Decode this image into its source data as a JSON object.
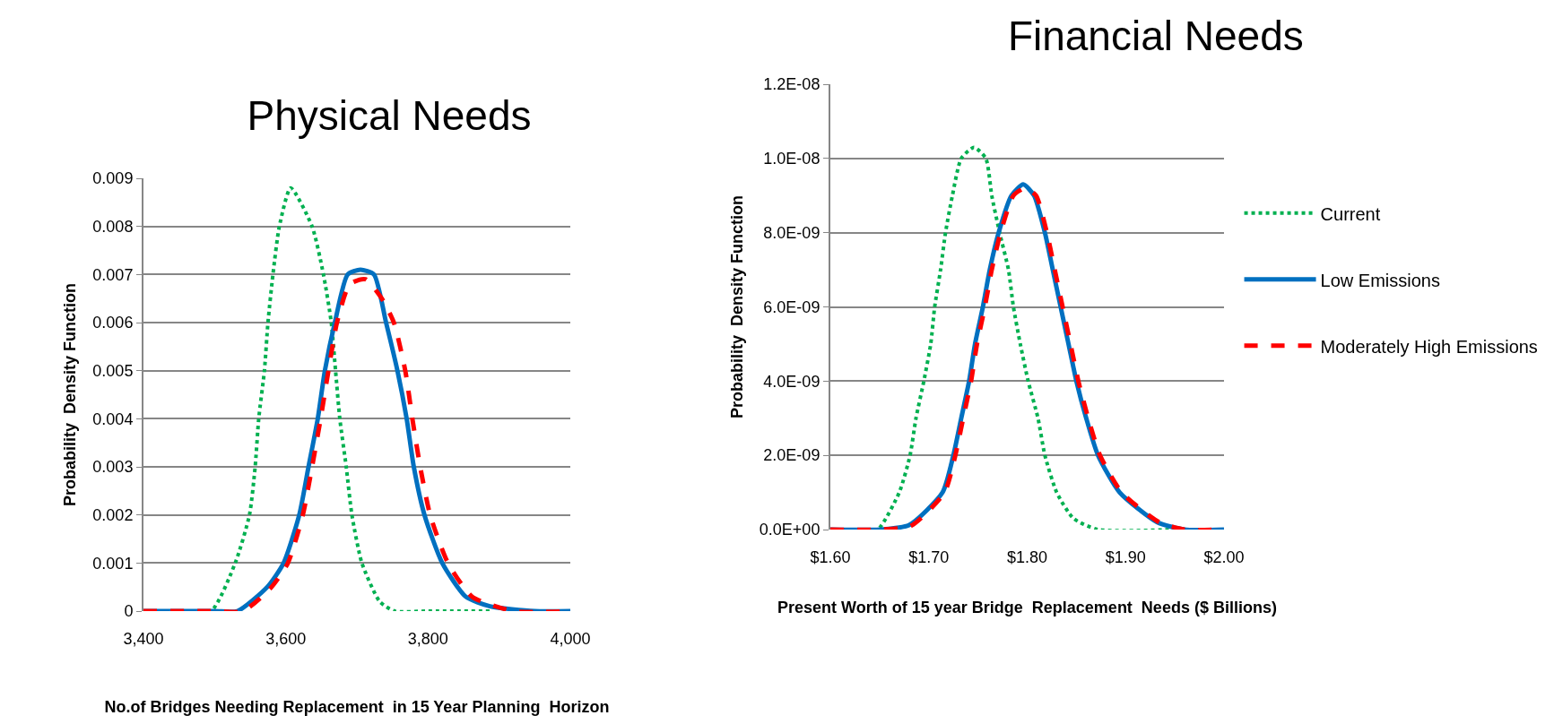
{
  "chart_data": [
    {
      "type": "line",
      "title": "Physical Needs",
      "xlabel": "No.of Bridges Needing Replacement  in 15 Year Planning  Horizon",
      "ylabel": "Probability  Density Function",
      "xlim": [
        3400,
        4000
      ],
      "xticks": [
        {
          "value": 3400,
          "label": "3,400"
        },
        {
          "value": 3600,
          "label": "3,600"
        },
        {
          "value": 3800,
          "label": "3,800"
        },
        {
          "value": 4000,
          "label": "4,000"
        }
      ],
      "ylim": [
        0,
        0.009
      ],
      "yticks": [
        0,
        0.001,
        0.002,
        0.003,
        0.004,
        0.005,
        0.006,
        0.007,
        0.008,
        0.009
      ],
      "grid": "y",
      "legend": false,
      "marker": "none",
      "series": [
        {
          "color": "#00b050",
          "line_style": "dotted",
          "x": [
            3400,
            3450,
            3495,
            3529,
            3549,
            3557,
            3562,
            3570,
            3575,
            3582,
            3591,
            3607,
            3637,
            3653,
            3664,
            3670,
            3676,
            3685,
            3693,
            3707,
            3732,
            3753,
            3800,
            3887
          ],
          "values": [
            0,
            0,
            0,
            0.001,
            0.002,
            0.003,
            0.004,
            0.005,
            0.006,
            0.007,
            0.008,
            0.0088,
            0.008,
            0.007,
            0.006,
            0.005,
            0.004,
            0.003,
            0.002,
            0.001,
            0.0002,
            0,
            0,
            0
          ]
        },
        {
          "color": "#0070c0",
          "line_style": "solid",
          "x": [
            3400,
            3500,
            3532,
            3574,
            3597,
            3619,
            3632,
            3645,
            3655,
            3669,
            3687,
            3705,
            3724,
            3741,
            3757,
            3770,
            3780,
            3795,
            3820,
            3853,
            3887,
            3950,
            4000
          ],
          "values": [
            0,
            0,
            0,
            0.0005,
            0.001,
            0.002,
            0.003,
            0.004,
            0.005,
            0.006,
            0.007,
            0.0071,
            0.007,
            0.006,
            0.005,
            0.004,
            0.003,
            0.002,
            0.001,
            0.0003,
            0.0001,
            0,
            0
          ]
        },
        {
          "color": "#ff0000",
          "line_style": "dashed",
          "x": [
            3400,
            3500,
            3540,
            3580,
            3603,
            3624,
            3637,
            3649,
            3660,
            3672,
            3690,
            3712,
            3735,
            3752,
            3768,
            3778,
            3789,
            3803,
            3828,
            3862,
            3920,
            4000
          ],
          "values": [
            0,
            0,
            0,
            0.0005,
            0.001,
            0.002,
            0.003,
            0.004,
            0.005,
            0.006,
            0.0068,
            0.0069,
            0.0065,
            0.006,
            0.005,
            0.004,
            0.003,
            0.002,
            0.001,
            0.0003,
            0,
            0
          ]
        }
      ]
    },
    {
      "type": "line",
      "title": "Financial Needs",
      "xlabel": "Present Worth of 15 year Bridge  Replacement  Needs ($ Billions)",
      "ylabel": "Probability  Density Function",
      "xlim": [
        1.6,
        2.0
      ],
      "xticks": [
        {
          "value": 1.6,
          "label": "$1.60"
        },
        {
          "value": 1.7,
          "label": "$1.70"
        },
        {
          "value": 1.8,
          "label": "$1.80"
        },
        {
          "value": 1.9,
          "label": "$1.90"
        },
        {
          "value": 2.0,
          "label": "$2.00"
        }
      ],
      "ylim": [
        0,
        1.2e-08
      ],
      "yticks": [
        {
          "value": 0,
          "label": "0.0E+00"
        },
        {
          "value": 2e-09,
          "label": "2.0E-09"
        },
        {
          "value": 4e-09,
          "label": "4.0E-09"
        },
        {
          "value": 6e-09,
          "label": "6.0E-09"
        },
        {
          "value": 8e-09,
          "label": "8.0E-09"
        },
        {
          "value": 1e-08,
          "label": "1.0E-08"
        },
        {
          "value": 1.2e-08,
          "label": "1.2E-08"
        }
      ],
      "grid": "y",
      "legend": "right",
      "marker": "none",
      "series": [
        {
          "name": "Current",
          "color": "#00b050",
          "line_style": "dotted",
          "x": [
            1.6,
            1.63,
            1.648,
            1.67,
            1.681,
            1.687,
            1.695,
            1.702,
            1.706,
            1.712,
            1.717,
            1.724,
            1.733,
            1.746,
            1.758,
            1.764,
            1.772,
            1.781,
            1.786,
            1.793,
            1.801,
            1.811,
            1.818,
            1.83,
            1.847,
            1.872,
            1.95
          ],
          "values": [
            0,
            0,
            0,
            1e-09,
            2e-09,
            3e-09,
            4e-09,
            5e-09,
            6e-09,
            7e-09,
            8e-09,
            9e-09,
            1e-08,
            1.03e-08,
            1e-08,
            9e-09,
            8e-09,
            7e-09,
            6e-09,
            5e-09,
            4e-09,
            3e-09,
            2e-09,
            1e-09,
            3e-10,
            0,
            0
          ]
        },
        {
          "name": "Low Emissions",
          "color": "#0070c0",
          "line_style": "solid",
          "x": [
            1.6,
            1.65,
            1.68,
            1.714,
            1.725,
            1.733,
            1.741,
            1.747,
            1.755,
            1.762,
            1.771,
            1.784,
            1.796,
            1.807,
            1.818,
            1.826,
            1.834,
            1.842,
            1.85,
            1.86,
            1.872,
            1.894,
            1.932,
            1.96,
            2.0
          ],
          "values": [
            0,
            0,
            1.2e-10,
            1e-09,
            2e-09,
            3e-09,
            4e-09,
            5e-09,
            6e-09,
            7e-09,
            8e-09,
            9e-09,
            9.3e-09,
            9e-09,
            8e-09,
            7e-09,
            6e-09,
            5e-09,
            4e-09,
            3e-09,
            2e-09,
            1e-09,
            2e-10,
            0,
            0
          ]
        },
        {
          "name": "Moderately High Emissions",
          "color": "#ff0000",
          "line_style": "dashed",
          "x": [
            1.6,
            1.65,
            1.682,
            1.716,
            1.727,
            1.735,
            1.743,
            1.749,
            1.757,
            1.764,
            1.773,
            1.786,
            1.798,
            1.809,
            1.82,
            1.828,
            1.836,
            1.844,
            1.852,
            1.862,
            1.874,
            1.896,
            1.934,
            1.96,
            2.0
          ],
          "values": [
            0,
            0,
            1e-10,
            1e-09,
            2e-09,
            3e-09,
            4e-09,
            5e-09,
            6e-09,
            7e-09,
            8e-09,
            9e-09,
            9.2e-09,
            9e-09,
            8e-09,
            7e-09,
            6e-09,
            5e-09,
            4e-09,
            3e-09,
            2e-09,
            1e-09,
            2e-10,
            0,
            0
          ]
        }
      ]
    }
  ]
}
